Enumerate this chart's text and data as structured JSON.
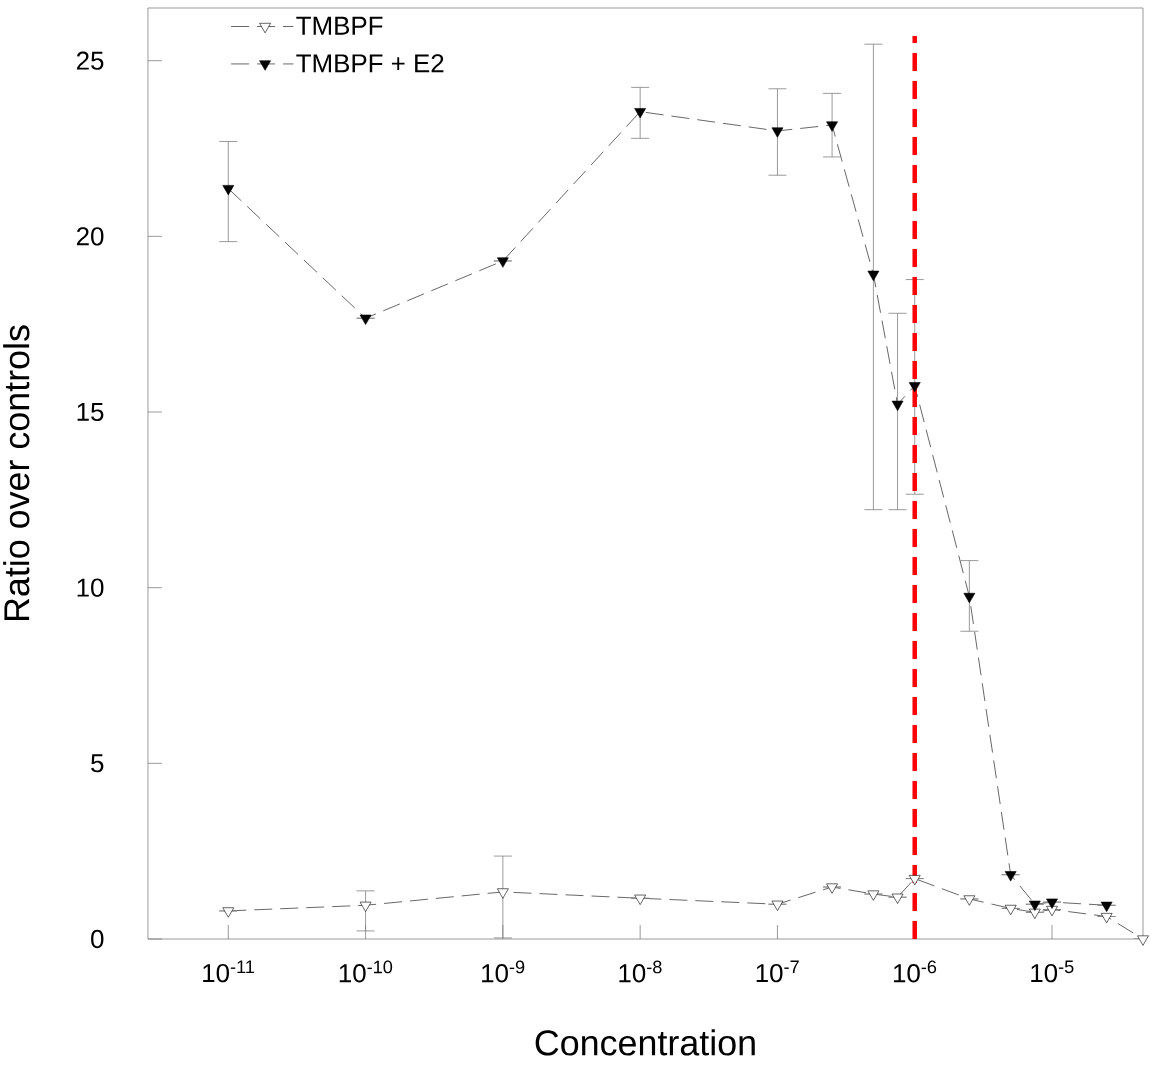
{
  "chart_data": {
    "type": "line",
    "xlabel": "Concentration",
    "ylabel": "Ratio over controls",
    "log": "x",
    "xlim": [
      2.6e-12,
      4.6e-05
    ],
    "ylim": [
      0,
      26.5
    ],
    "xticks": [
      {
        "value": 1e-11,
        "label": "10$^{-11}$"
      },
      {
        "value": 1e-10,
        "label": "10$^{-10}$"
      },
      {
        "value": 1e-09,
        "label": "10$^{-9}$"
      },
      {
        "value": 1e-08,
        "label": "10$^{-8}$"
      },
      {
        "value": 1e-07,
        "label": "10$^{-7}$"
      },
      {
        "value": 1e-06,
        "label": "10$^{-6}$"
      },
      {
        "value": 1e-05,
        "label": "10$^{-5}$"
      }
    ],
    "yticks": [
      0,
      5,
      10,
      15,
      20,
      25
    ],
    "marker": "triangle",
    "line_style": "dashed",
    "legend": "top left",
    "grid": false,
    "series": [
      {
        "name": "TMBPF",
        "color": "#ffffff",
        "x": [
          1e-11,
          1e-10,
          1e-09,
          1e-08,
          1e-07,
          2.5e-07,
          5e-07,
          7.5e-07,
          1e-06,
          2.5e-06,
          5e-06,
          7.5e-06,
          1e-05,
          2.5e-05,
          4.6e-05
        ],
        "values": [
          0.8,
          0.96,
          1.34,
          1.16,
          0.99,
          1.48,
          1.28,
          1.19,
          1.72,
          1.14,
          0.87,
          0.76,
          0.84,
          0.64,
          0
        ],
        "errors": [
          null,
          [
            0.23,
            1.37
          ],
          [
            0.03,
            2.36
          ],
          null,
          null,
          null,
          null,
          null,
          null,
          null,
          null,
          null,
          null,
          null,
          null
        ]
      },
      {
        "name": "TMBPF + E2",
        "color": "#000000",
        "x": [
          1e-11,
          1e-10,
          1e-09,
          1e-08,
          1e-07,
          2.5e-07,
          5e-07,
          7.5e-07,
          1e-06,
          2.5e-06,
          5e-06,
          7.5e-06,
          1e-05,
          2.5e-05
        ],
        "values": [
          21.36,
          17.67,
          19.3,
          23.55,
          23.0,
          23.17,
          18.92,
          15.22,
          15.75,
          9.75,
          1.83,
          0.99,
          1.05,
          0.96
        ],
        "errors": [
          [
            19.85,
            22.7
          ],
          null,
          null,
          [
            22.79,
            24.24
          ],
          [
            21.74,
            24.2
          ],
          [
            22.26,
            24.07
          ],
          [
            12.22,
            25.47
          ],
          [
            12.22,
            17.81
          ],
          [
            12.66,
            18.77
          ],
          [
            8.76,
            10.77
          ],
          null,
          null,
          null,
          null
        ]
      }
    ],
    "ref_lines": [
      {
        "axis": "x",
        "value": 1e-06,
        "color": "#ff0000",
        "line_style": "dashed"
      }
    ]
  }
}
